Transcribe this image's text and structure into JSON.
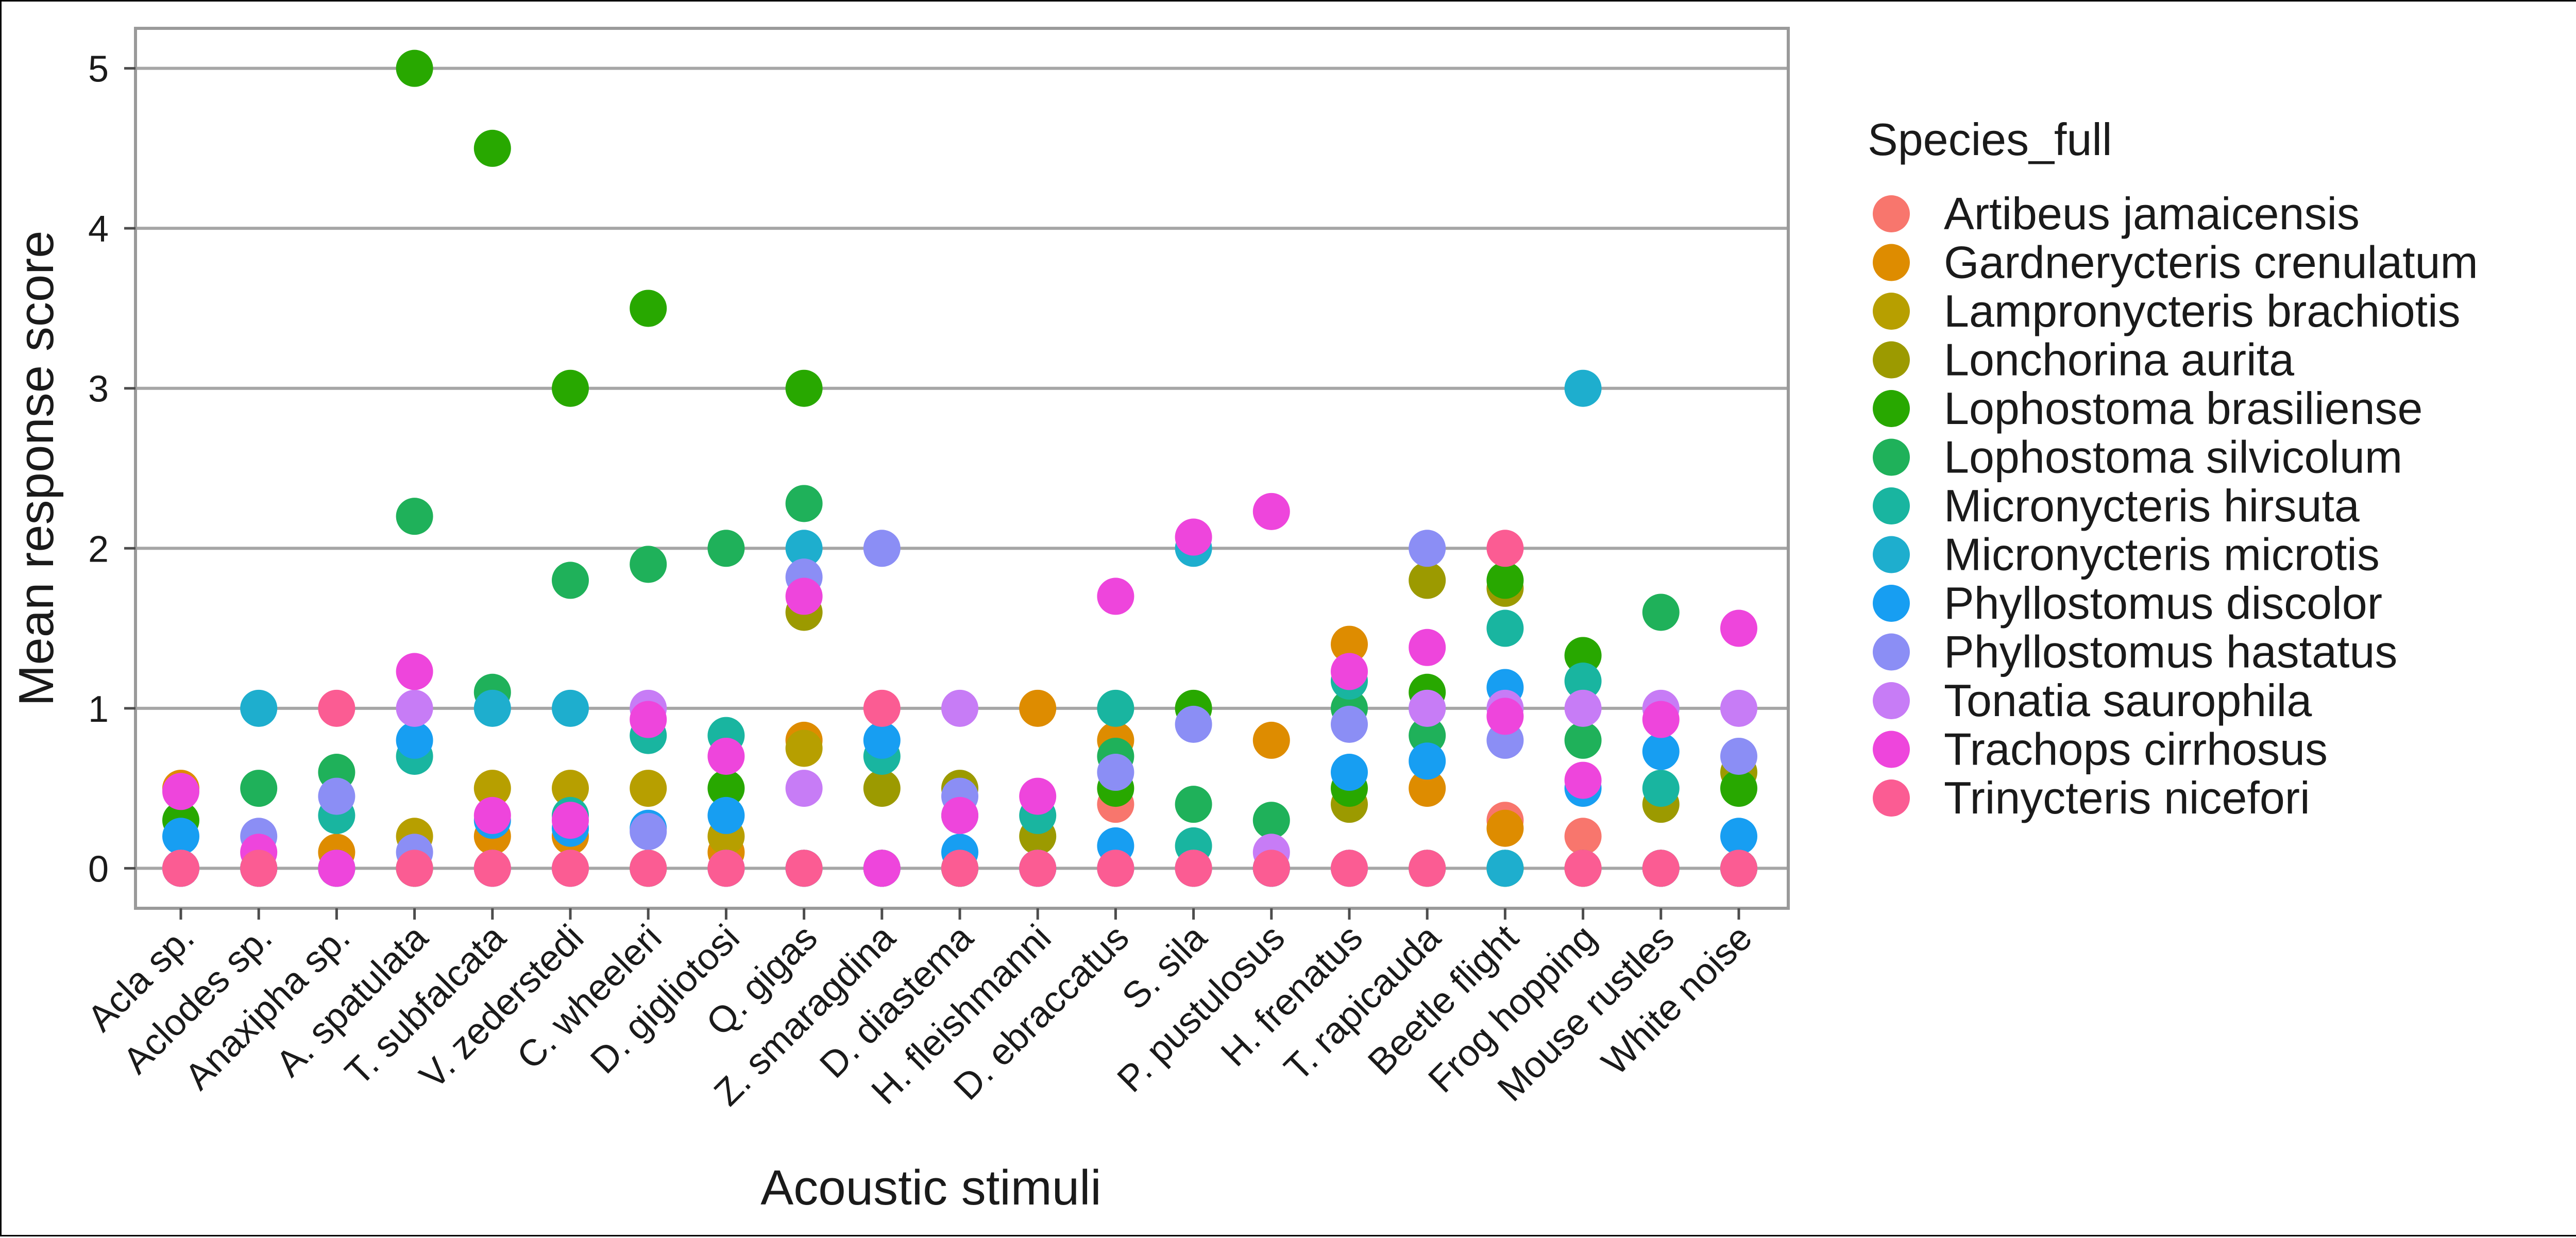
{
  "chart_data": {
    "type": "scatter",
    "title": "",
    "xlabel": "Acoustic stimuli",
    "ylabel": "Mean response score",
    "ylim": [
      -0.25,
      5.25
    ],
    "yticks": [
      "0",
      "1",
      "2",
      "3",
      "4",
      "5"
    ],
    "grid": "horizontal major gridlines",
    "legend_position": "right",
    "legend_title": "Species_full",
    "categories": [
      "Acla sp.",
      "Aclodes sp.",
      "Anaxipha sp.",
      "A. spatulata",
      "T. subfalcata",
      "V. zederstedi",
      "C. wheeleri",
      "D. gigliotosi",
      "Q. gigas",
      "Z. smaragdina",
      "D. diastema",
      "H. fleishmanni",
      "D. ebraccatus",
      "S. sila",
      "P. pustulosus",
      "H. frenatus",
      "T. rapicauda",
      "Beetle flight",
      "Frog hopping",
      "Mouse rustles",
      "White noise"
    ],
    "series": [
      {
        "name": "Artibeus jamaicensis",
        "color": "#F8766D",
        "values": [
          0,
          0,
          0,
          0,
          0,
          0,
          0,
          0,
          0,
          0,
          0,
          0,
          0.4,
          0,
          0,
          0,
          0,
          0.3,
          0.2,
          0,
          0
        ]
      },
      {
        "name": "Gardnerycteris crenulatum",
        "color": "#DE8C00",
        "values": [
          0.5,
          0,
          0.1,
          0,
          0.2,
          0.2,
          0,
          0.1,
          0.8,
          0,
          0,
          1.0,
          0.8,
          0,
          0.8,
          1.4,
          0.5,
          0.25,
          0,
          0,
          0
        ]
      },
      {
        "name": "Lampronycteris brachiotis",
        "color": "#B79F00",
        "values": [
          0,
          0,
          0,
          0.2,
          0.5,
          0.5,
          0.5,
          0.2,
          0.75,
          0,
          0,
          0,
          0,
          0,
          0,
          0,
          0,
          0,
          0,
          0,
          0
        ]
      },
      {
        "name": "Lonchorina aurita",
        "color": "#9C9A00",
        "values": [
          0,
          0,
          0,
          0,
          0,
          0,
          0,
          0,
          1.6,
          0.5,
          0.5,
          0.2,
          0,
          0,
          0,
          0.4,
          1.8,
          1.75,
          0,
          0.4,
          0.6
        ]
      },
      {
        "name": "Lophostoma brasiliense",
        "color": "#28A800",
        "values": [
          0.3,
          0,
          0,
          5.0,
          4.5,
          3.0,
          3.5,
          0.5,
          3.0,
          0,
          0,
          0,
          0.5,
          1.0,
          0,
          0.5,
          1.1,
          1.8,
          1.33,
          0,
          0.5
        ]
      },
      {
        "name": "Lophostoma silvicolum",
        "color": "#1FB15A",
        "values": [
          0,
          0.5,
          0.6,
          2.2,
          1.1,
          1.8,
          1.9,
          2.0,
          2.28,
          0,
          0,
          0,
          0.7,
          0.4,
          0.3,
          1.0,
          0.83,
          0,
          0.8,
          1.6,
          0
        ]
      },
      {
        "name": "Micronycteris hirsuta",
        "color": "#19B5A0",
        "values": [
          0,
          0,
          0.33,
          0.7,
          0,
          0.33,
          0.83,
          0.83,
          0,
          0.7,
          0.33,
          0.33,
          1.0,
          0.14,
          0,
          1.17,
          1.0,
          1.5,
          1.17,
          0.5,
          0
        ]
      },
      {
        "name": "Micronycteris microtis",
        "color": "#1EAECE",
        "values": [
          0,
          1.0,
          0,
          0,
          1.0,
          1.0,
          0,
          0,
          2.0,
          0,
          0,
          0,
          0,
          2.0,
          0,
          0,
          0,
          0,
          3.0,
          0,
          0
        ]
      },
      {
        "name": "Phyllostomus discolor",
        "color": "#179EF2",
        "values": [
          0.2,
          0,
          0,
          0.8,
          0.3,
          0.25,
          0.25,
          0.33,
          0,
          0.8,
          0.1,
          0,
          0.14,
          0,
          0,
          0.6,
          0.67,
          1.13,
          0.5,
          0.73,
          0.2
        ]
      },
      {
        "name": "Phyllostomus hastatus",
        "color": "#8B8EF5",
        "values": [
          0,
          0.2,
          0.45,
          0.1,
          0,
          0,
          0.23,
          0,
          1.82,
          2.0,
          0.45,
          0,
          0.6,
          0.9,
          0,
          0.9,
          2.0,
          0.8,
          0,
          0,
          0.7
        ]
      },
      {
        "name": "Tonatia saurophila",
        "color": "#C77CF6",
        "values": [
          0,
          0,
          0,
          1.0,
          0,
          0,
          1.0,
          0,
          0.5,
          0,
          1.0,
          0,
          0,
          0,
          0.1,
          0,
          1.0,
          1.0,
          1.0,
          1.0,
          1.0
        ]
      },
      {
        "name": "Trachops cirrhosus",
        "color": "#EE45DC",
        "values": [
          0.48,
          0.1,
          0,
          1.23,
          0.33,
          0.3,
          0.93,
          0.7,
          1.7,
          0,
          0.33,
          0.45,
          1.7,
          2.07,
          2.23,
          1.23,
          1.38,
          0.95,
          0.55,
          0.93,
          1.5
        ]
      },
      {
        "name": "Trinycteris nicefori",
        "color": "#FB5C93",
        "values": [
          0,
          0,
          1.0,
          0,
          0,
          0,
          0,
          0,
          0,
          1.0,
          0,
          0,
          0,
          0,
          0,
          0,
          0,
          2.0,
          0,
          0,
          0
        ]
      }
    ]
  }
}
